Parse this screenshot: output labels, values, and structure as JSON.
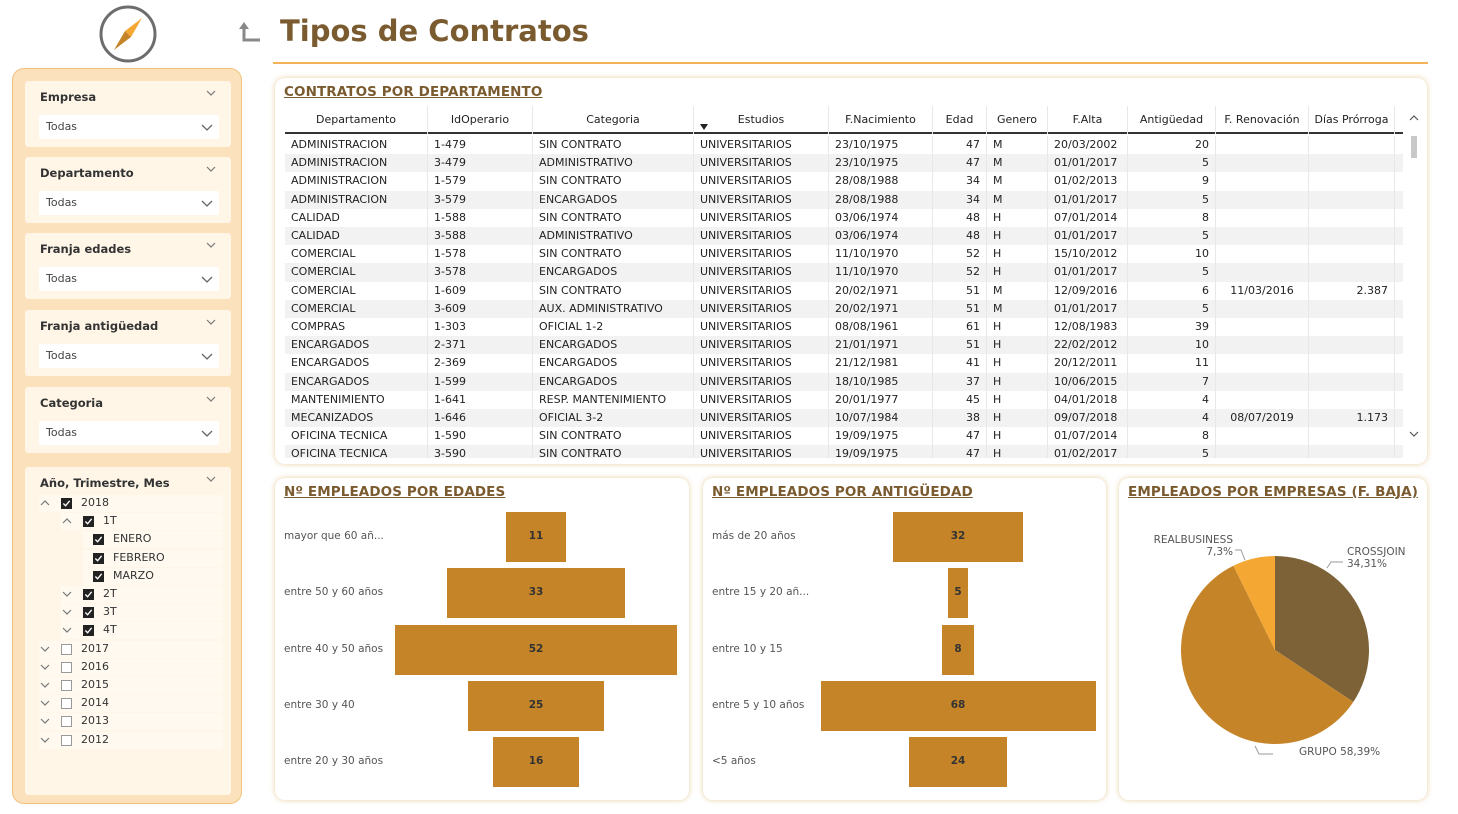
{
  "header": {
    "title": "Tipos de Contratos"
  },
  "filters": [
    {
      "label": "Empresa",
      "value": "Todas"
    },
    {
      "label": "Departamento",
      "value": "Todas"
    },
    {
      "label": "Franja edades",
      "value": "Todas"
    },
    {
      "label": "Franja antigüedad",
      "value": "Todas"
    },
    {
      "label": "Categoria",
      "value": "Todas"
    }
  ],
  "date_tree": {
    "label": "Año, Trimestre, Mes",
    "items": [
      {
        "label": "2018",
        "level": 0,
        "checked": true,
        "expanded": true
      },
      {
        "label": "1T",
        "level": 1,
        "checked": true,
        "expanded": true
      },
      {
        "label": "ENERO",
        "level": 2,
        "checked": true
      },
      {
        "label": "FEBRERO",
        "level": 2,
        "checked": true
      },
      {
        "label": "MARZO",
        "level": 2,
        "checked": true
      },
      {
        "label": "2T",
        "level": 1,
        "checked": true,
        "expanded": false
      },
      {
        "label": "3T",
        "level": 1,
        "checked": true,
        "expanded": false
      },
      {
        "label": "4T",
        "level": 1,
        "checked": true,
        "expanded": false
      },
      {
        "label": "2017",
        "level": 0,
        "checked": false,
        "expanded": false
      },
      {
        "label": "2016",
        "level": 0,
        "checked": false,
        "expanded": false
      },
      {
        "label": "2015",
        "level": 0,
        "checked": false,
        "expanded": false
      },
      {
        "label": "2014",
        "level": 0,
        "checked": false,
        "expanded": false
      },
      {
        "label": "2013",
        "level": 0,
        "checked": false,
        "expanded": false
      },
      {
        "label": "2012",
        "level": 0,
        "checked": false,
        "expanded": false
      }
    ]
  },
  "contracts_table": {
    "title": "CONTRATOS POR DEPARTAMENTO",
    "columns": [
      "Departamento",
      "IdOperario",
      "Categoria",
      "Estudios",
      "F.Nacimiento",
      "Edad",
      "Genero",
      "F.Alta",
      "Antigüedad",
      "F. Renovación",
      "Días Prórroga"
    ],
    "rows": [
      [
        "ADMINISTRACION",
        "1-479",
        "SIN CONTRATO",
        "UNIVERSITARIOS",
        "23/10/1975",
        "47",
        "M",
        "20/03/2002",
        "20",
        "",
        ""
      ],
      [
        "ADMINISTRACION",
        "3-479",
        "ADMINISTRATIVO",
        "UNIVERSITARIOS",
        "23/10/1975",
        "47",
        "M",
        "01/01/2017",
        "5",
        "",
        ""
      ],
      [
        "ADMINISTRACION",
        "1-579",
        "SIN CONTRATO",
        "UNIVERSITARIOS",
        "28/08/1988",
        "34",
        "M",
        "01/02/2013",
        "9",
        "",
        ""
      ],
      [
        "ADMINISTRACION",
        "3-579",
        "ENCARGADOS",
        "UNIVERSITARIOS",
        "28/08/1988",
        "34",
        "M",
        "01/01/2017",
        "5",
        "",
        ""
      ],
      [
        "CALIDAD",
        "1-588",
        "SIN CONTRATO",
        "UNIVERSITARIOS",
        "03/06/1974",
        "48",
        "H",
        "07/01/2014",
        "8",
        "",
        ""
      ],
      [
        "CALIDAD",
        "3-588",
        "ADMINISTRATIVO",
        "UNIVERSITARIOS",
        "03/06/1974",
        "48",
        "H",
        "01/01/2017",
        "5",
        "",
        ""
      ],
      [
        "COMERCIAL",
        "1-578",
        "SIN CONTRATO",
        "UNIVERSITARIOS",
        "11/10/1970",
        "52",
        "H",
        "15/10/2012",
        "10",
        "",
        ""
      ],
      [
        "COMERCIAL",
        "3-578",
        "ENCARGADOS",
        "UNIVERSITARIOS",
        "11/10/1970",
        "52",
        "H",
        "01/01/2017",
        "5",
        "",
        ""
      ],
      [
        "COMERCIAL",
        "1-609",
        "SIN CONTRATO",
        "UNIVERSITARIOS",
        "20/02/1971",
        "51",
        "M",
        "12/09/2016",
        "6",
        "11/03/2016",
        "2.387"
      ],
      [
        "COMERCIAL",
        "3-609",
        "AUX. ADMINISTRATIVO",
        "UNIVERSITARIOS",
        "20/02/1971",
        "51",
        "M",
        "01/01/2017",
        "5",
        "",
        ""
      ],
      [
        "COMPRAS",
        "1-303",
        "OFICIAL 1-2",
        "UNIVERSITARIOS",
        "08/08/1961",
        "61",
        "H",
        "12/08/1983",
        "39",
        "",
        ""
      ],
      [
        "ENCARGADOS",
        "2-371",
        "ENCARGADOS",
        "UNIVERSITARIOS",
        "21/01/1971",
        "51",
        "H",
        "22/02/2012",
        "10",
        "",
        ""
      ],
      [
        "ENCARGADOS",
        "2-369",
        "ENCARGADOS",
        "UNIVERSITARIOS",
        "21/12/1981",
        "41",
        "H",
        "20/12/2011",
        "11",
        "",
        ""
      ],
      [
        "ENCARGADOS",
        "1-599",
        "ENCARGADOS",
        "UNIVERSITARIOS",
        "18/10/1985",
        "37",
        "H",
        "10/06/2015",
        "7",
        "",
        ""
      ],
      [
        "MANTENIMIENTO",
        "1-641",
        "RESP. MANTENIMIENTO",
        "UNIVERSITARIOS",
        "20/01/1977",
        "45",
        "H",
        "04/01/2018",
        "4",
        "",
        ""
      ],
      [
        "MECANIZADOS",
        "1-646",
        "OFICIAL 3-2",
        "UNIVERSITARIOS",
        "10/07/1984",
        "38",
        "H",
        "09/07/2018",
        "4",
        "08/07/2019",
        "1.173"
      ],
      [
        "OFICINA TECNICA",
        "1-590",
        "SIN CONTRATO",
        "UNIVERSITARIOS",
        "19/09/1975",
        "47",
        "H",
        "01/07/2014",
        "8",
        "",
        ""
      ],
      [
        "OFICINA TECNICA",
        "3-590",
        "SIN CONTRATO",
        "UNIVERSITARIOS",
        "19/09/1975",
        "47",
        "H",
        "01/02/2017",
        "5",
        "",
        ""
      ]
    ]
  },
  "chart_data": [
    {
      "type": "bar",
      "title": "Nº EMPLEADOS POR EDADES",
      "categories": [
        "mayor que 60 añ...",
        "entre 50 y 60 años",
        "entre 40 y 50 años",
        "entre 30 y 40",
        "entre 20 y 30 años"
      ],
      "values": [
        11,
        33,
        52,
        25,
        16
      ],
      "xlim": [
        0,
        52
      ]
    },
    {
      "type": "bar",
      "title": "Nº EMPLEADOS POR ANTIGÜEDAD",
      "categories": [
        "más de 20 años",
        "entre 15 y 20 añ...",
        "entre 10 y 15",
        "entre 5 y 10 años",
        "<5 años"
      ],
      "values": [
        32,
        5,
        8,
        68,
        24
      ],
      "xlim": [
        0,
        68
      ]
    },
    {
      "type": "pie",
      "title": "EMPLEADOS POR EMPRESAS (F. BAJA)",
      "slices": [
        {
          "name": "CROSSJOIN",
          "value": 34.31,
          "label": "34,31%",
          "color": "#7d6238"
        },
        {
          "name": "GRUPO",
          "value": 58.39,
          "label": "58,39%",
          "color": "#c58428"
        },
        {
          "name": "REALBUSINESS",
          "value": 7.3,
          "label": "7,3%",
          "color": "#f5a733"
        }
      ]
    }
  ],
  "colors": {
    "brand": "#7a5a2f",
    "bar": "#c58428",
    "sidebar": "#fbe2bd"
  }
}
